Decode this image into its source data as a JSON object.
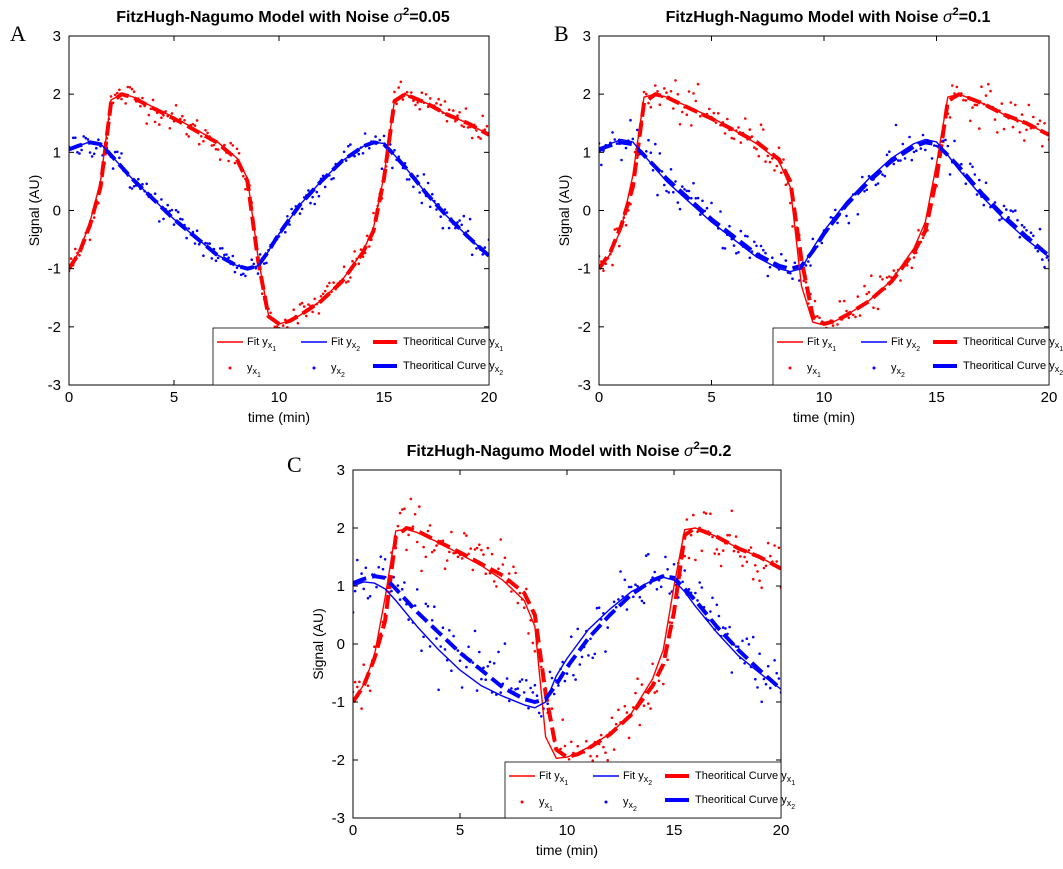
{
  "chart_data": [
    {
      "panel": "A",
      "type": "line",
      "title_prefix": "FitzHugh-Nagumo Model with Noise ",
      "title_value": "=0.05",
      "xlabel": "time (min)",
      "ylabel": "Signal (AU)",
      "xlim": [
        0,
        20
      ],
      "ylim": [
        -3,
        3
      ],
      "xticks": [
        "0",
        "5",
        "10",
        "15",
        "20"
      ],
      "yticks": [
        "-3",
        "-2",
        "-1",
        "0",
        "1",
        "2",
        "3"
      ],
      "noise_variance": 0.05,
      "legend_placement": "bottom-right",
      "series": [
        {
          "name": "Fit y",
          "sub": "x",
          "subsub": "1",
          "kind": "fit",
          "color": "#ff0000",
          "x": [
            0,
            0.5,
            1,
            1.5,
            2,
            2.5,
            3,
            4,
            5,
            6,
            7,
            8,
            8.5,
            9,
            9.5,
            10,
            10.5,
            11,
            12,
            13,
            14,
            14.5,
            15,
            15.5,
            16,
            17,
            18,
            19,
            20
          ],
          "y": [
            -1.0,
            -0.7,
            -0.2,
            0.5,
            1.9,
            2.0,
            1.96,
            1.78,
            1.6,
            1.4,
            1.2,
            0.9,
            0.55,
            -0.8,
            -1.8,
            -1.95,
            -1.9,
            -1.8,
            -1.55,
            -1.2,
            -0.7,
            -0.3,
            0.6,
            1.9,
            2.0,
            1.85,
            1.65,
            1.5,
            1.3
          ]
        },
        {
          "name": "Fit y",
          "sub": "x",
          "subsub": "2",
          "kind": "fit",
          "color": "#0000ff",
          "x": [
            0,
            0.5,
            1,
            1.5,
            2,
            3,
            4,
            5,
            6,
            7,
            8,
            8.5,
            9,
            9.5,
            10,
            11,
            12,
            13,
            14,
            14.5,
            15,
            15.5,
            16,
            17,
            18,
            19,
            20
          ],
          "y": [
            1.05,
            1.12,
            1.18,
            1.15,
            0.95,
            0.55,
            0.2,
            -0.15,
            -0.45,
            -0.75,
            -0.95,
            -1.0,
            -0.95,
            -0.7,
            -0.4,
            0.1,
            0.5,
            0.85,
            1.1,
            1.18,
            1.15,
            0.95,
            0.75,
            0.3,
            -0.1,
            -0.45,
            -0.78
          ]
        },
        {
          "name": "Theoritical Curve y",
          "sub": "x",
          "subsub": "1",
          "kind": "theory",
          "color": "#ff0000",
          "x": [
            0,
            0.5,
            1,
            1.5,
            2,
            2.5,
            3,
            4,
            5,
            6,
            7,
            8,
            8.5,
            9,
            9.5,
            10,
            10.5,
            11,
            12,
            13,
            14,
            14.5,
            15,
            15.5,
            16,
            17,
            18,
            19,
            20
          ],
          "y": [
            -1.0,
            -0.72,
            -0.25,
            0.4,
            1.85,
            2.0,
            1.95,
            1.76,
            1.58,
            1.38,
            1.18,
            0.88,
            0.5,
            -0.85,
            -1.82,
            -1.95,
            -1.9,
            -1.8,
            -1.56,
            -1.22,
            -0.72,
            -0.35,
            0.55,
            1.88,
            2.0,
            1.85,
            1.65,
            1.5,
            1.3
          ]
        },
        {
          "name": "Theoritical Curve y",
          "sub": "x",
          "subsub": "2",
          "kind": "theory",
          "color": "#0000ff",
          "x": [
            0,
            0.5,
            1,
            1.5,
            2,
            3,
            4,
            5,
            6,
            7,
            8,
            8.5,
            9,
            9.5,
            10,
            11,
            12,
            13,
            14,
            14.5,
            15,
            15.5,
            16,
            17,
            18,
            19,
            20
          ],
          "y": [
            1.05,
            1.12,
            1.17,
            1.14,
            0.95,
            0.55,
            0.2,
            -0.15,
            -0.45,
            -0.75,
            -0.95,
            -1.0,
            -0.95,
            -0.7,
            -0.4,
            0.1,
            0.5,
            0.85,
            1.1,
            1.17,
            1.14,
            0.95,
            0.75,
            0.3,
            -0.1,
            -0.45,
            -0.78
          ]
        },
        {
          "name": "y",
          "sub": "x",
          "subsub": "1",
          "kind": "points",
          "color": "#ff0000"
        },
        {
          "name": "y",
          "sub": "x",
          "subsub": "2",
          "kind": "points",
          "color": "#0000ff"
        }
      ]
    },
    {
      "panel": "B",
      "type": "line",
      "title_prefix": "FitzHugh-Nagumo Model with Noise ",
      "title_value": "=0.1",
      "xlabel": "time (min)",
      "ylabel": "Signal (AU)",
      "xlim": [
        0,
        20
      ],
      "ylim": [
        -3,
        3
      ],
      "xticks": [
        "0",
        "5",
        "10",
        "15",
        "20"
      ],
      "yticks": [
        "-3",
        "-2",
        "-1",
        "0",
        "1",
        "2",
        "3"
      ],
      "noise_variance": 0.1,
      "legend_placement": "bottom-right",
      "series": [
        {
          "name": "Fit y",
          "sub": "x",
          "subsub": "1",
          "kind": "fit",
          "color": "#ff0000",
          "x": [
            0,
            0.5,
            1,
            1.5,
            2,
            2.5,
            3,
            4,
            5,
            6,
            7,
            8,
            8.5,
            9,
            9.5,
            10,
            10.5,
            11,
            12,
            13,
            14,
            14.5,
            15,
            15.5,
            16,
            17,
            18,
            19,
            20
          ],
          "y": [
            -1.0,
            -0.75,
            -0.3,
            0.6,
            1.95,
            2.0,
            1.95,
            1.78,
            1.6,
            1.38,
            1.15,
            0.85,
            0.4,
            -1.3,
            -1.92,
            -1.97,
            -1.9,
            -1.8,
            -1.55,
            -1.2,
            -0.65,
            -0.2,
            0.8,
            1.95,
            2.0,
            1.85,
            1.65,
            1.5,
            1.3
          ]
        },
        {
          "name": "Fit y",
          "sub": "x",
          "subsub": "2",
          "kind": "fit",
          "color": "#0000ff",
          "x": [
            0,
            0.5,
            1,
            1.5,
            2,
            3,
            4,
            5,
            6,
            7,
            8,
            8.5,
            9,
            9.5,
            10,
            11,
            12,
            13,
            14,
            14.5,
            15,
            15.5,
            16,
            17,
            18,
            19,
            20
          ],
          "y": [
            1.0,
            1.15,
            1.22,
            1.18,
            0.95,
            0.5,
            0.15,
            -0.2,
            -0.5,
            -0.8,
            -1.0,
            -1.05,
            -1.0,
            -0.65,
            -0.35,
            0.15,
            0.55,
            0.9,
            1.15,
            1.22,
            1.18,
            0.95,
            0.7,
            0.25,
            -0.15,
            -0.5,
            -0.8
          ]
        },
        {
          "name": "Theoritical Curve y",
          "sub": "x",
          "subsub": "1",
          "kind": "theory",
          "color": "#ff0000",
          "x": [
            0,
            0.5,
            1,
            1.5,
            2,
            2.5,
            3,
            4,
            5,
            6,
            7,
            8,
            8.5,
            9,
            9.5,
            10,
            10.5,
            11,
            12,
            13,
            14,
            14.5,
            15,
            15.5,
            16,
            17,
            18,
            19,
            20
          ],
          "y": [
            -1.0,
            -0.72,
            -0.25,
            0.4,
            1.85,
            2.0,
            1.95,
            1.76,
            1.58,
            1.38,
            1.18,
            0.88,
            0.5,
            -0.85,
            -1.82,
            -1.95,
            -1.9,
            -1.8,
            -1.56,
            -1.22,
            -0.72,
            -0.35,
            0.55,
            1.88,
            2.0,
            1.85,
            1.65,
            1.5,
            1.3
          ]
        },
        {
          "name": "Theoritical Curve y",
          "sub": "x",
          "subsub": "2",
          "kind": "theory",
          "color": "#0000ff",
          "x": [
            0,
            0.5,
            1,
            1.5,
            2,
            3,
            4,
            5,
            6,
            7,
            8,
            8.5,
            9,
            9.5,
            10,
            11,
            12,
            13,
            14,
            14.5,
            15,
            15.5,
            16,
            17,
            18,
            19,
            20
          ],
          "y": [
            1.05,
            1.12,
            1.17,
            1.14,
            0.95,
            0.55,
            0.2,
            -0.15,
            -0.45,
            -0.75,
            -0.95,
            -1.0,
            -0.95,
            -0.7,
            -0.4,
            0.1,
            0.5,
            0.85,
            1.1,
            1.17,
            1.14,
            0.95,
            0.75,
            0.3,
            -0.1,
            -0.45,
            -0.78
          ]
        },
        {
          "name": "y",
          "sub": "x",
          "subsub": "1",
          "kind": "points",
          "color": "#ff0000"
        },
        {
          "name": "y",
          "sub": "x",
          "subsub": "2",
          "kind": "points",
          "color": "#0000ff"
        }
      ]
    },
    {
      "panel": "C",
      "type": "line",
      "title_prefix": "FitzHugh-Nagumo Model with Noise ",
      "title_value": "=0.2",
      "xlabel": "time (min)",
      "ylabel": "Signal (AU)",
      "xlim": [
        0,
        20
      ],
      "ylim": [
        -3,
        3
      ],
      "xticks": [
        "0",
        "5",
        "10",
        "15",
        "20"
      ],
      "yticks": [
        "-3",
        "-2",
        "-1",
        "0",
        "1",
        "2",
        "3"
      ],
      "noise_variance": 0.2,
      "legend_placement": "bottom-right",
      "series": [
        {
          "name": "Fit y",
          "sub": "x",
          "subsub": "1",
          "kind": "fit",
          "color": "#ff0000",
          "x": [
            0,
            0.5,
            1,
            1.5,
            2,
            2.5,
            3,
            4,
            5,
            6,
            7,
            8,
            8.5,
            9,
            9.5,
            10,
            10.5,
            11,
            12,
            13,
            14,
            14.5,
            15,
            15.5,
            16,
            17,
            18,
            19,
            20
          ],
          "y": [
            -1.0,
            -0.7,
            -0.2,
            0.8,
            1.95,
            1.98,
            1.92,
            1.75,
            1.55,
            1.35,
            1.1,
            0.75,
            0.3,
            -1.6,
            -1.97,
            -1.95,
            -1.88,
            -1.78,
            -1.55,
            -1.2,
            -0.6,
            -0.1,
            1.0,
            1.97,
            2.0,
            1.85,
            1.65,
            1.5,
            1.3
          ]
        },
        {
          "name": "Fit y",
          "sub": "x",
          "subsub": "2",
          "kind": "fit",
          "color": "#0000ff",
          "x": [
            0,
            0.5,
            1,
            1.5,
            2,
            3,
            4,
            5,
            6,
            7,
            8,
            8.5,
            9,
            9.5,
            10,
            11,
            12,
            13,
            14,
            14.5,
            15,
            15.5,
            16,
            17,
            18,
            19,
            20
          ],
          "y": [
            1.0,
            1.07,
            1.05,
            0.95,
            0.75,
            0.3,
            -0.1,
            -0.45,
            -0.72,
            -0.9,
            -1.05,
            -1.1,
            -1.0,
            -0.55,
            -0.25,
            0.25,
            0.6,
            0.9,
            1.1,
            1.15,
            1.1,
            0.9,
            0.65,
            0.2,
            -0.2,
            -0.5,
            -0.78
          ]
        },
        {
          "name": "Theoritical Curve y",
          "sub": "x",
          "subsub": "1",
          "kind": "theory",
          "color": "#ff0000",
          "x": [
            0,
            0.5,
            1,
            1.5,
            2,
            2.5,
            3,
            4,
            5,
            6,
            7,
            8,
            8.5,
            9,
            9.5,
            10,
            10.5,
            11,
            12,
            13,
            14,
            14.5,
            15,
            15.5,
            16,
            17,
            18,
            19,
            20
          ],
          "y": [
            -1.0,
            -0.72,
            -0.25,
            0.4,
            1.85,
            2.0,
            1.95,
            1.76,
            1.58,
            1.38,
            1.18,
            0.88,
            0.5,
            -0.85,
            -1.82,
            -1.95,
            -1.9,
            -1.8,
            -1.56,
            -1.22,
            -0.72,
            -0.35,
            0.55,
            1.88,
            2.0,
            1.85,
            1.65,
            1.5,
            1.3
          ]
        },
        {
          "name": "Theoritical Curve y",
          "sub": "x",
          "subsub": "2",
          "kind": "theory",
          "color": "#0000ff",
          "x": [
            0,
            0.5,
            1,
            1.5,
            2,
            3,
            4,
            5,
            6,
            7,
            8,
            8.5,
            9,
            9.5,
            10,
            11,
            12,
            13,
            14,
            14.5,
            15,
            15.5,
            16,
            17,
            18,
            19,
            20
          ],
          "y": [
            1.05,
            1.12,
            1.17,
            1.14,
            0.95,
            0.55,
            0.2,
            -0.15,
            -0.45,
            -0.75,
            -0.95,
            -1.0,
            -0.95,
            -0.7,
            -0.4,
            0.1,
            0.5,
            0.85,
            1.1,
            1.17,
            1.14,
            0.95,
            0.75,
            0.3,
            -0.1,
            -0.45,
            -0.78
          ]
        },
        {
          "name": "y",
          "sub": "x",
          "subsub": "1",
          "kind": "points",
          "color": "#ff0000"
        },
        {
          "name": "y",
          "sub": "x",
          "subsub": "2",
          "kind": "points",
          "color": "#0000ff"
        }
      ]
    }
  ]
}
